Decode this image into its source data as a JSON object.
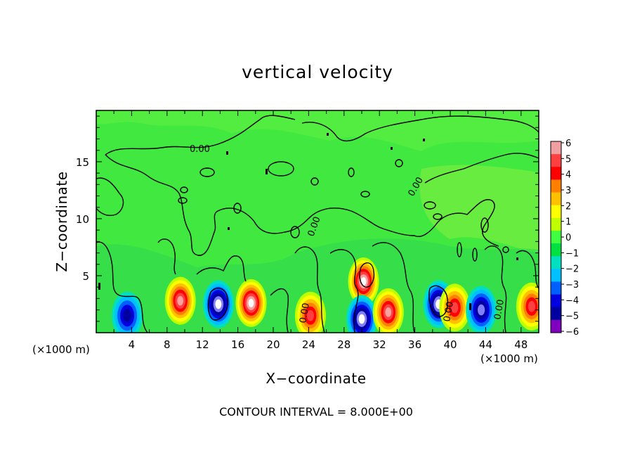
{
  "chart_data": {
    "type": "heatmap",
    "title": "vertical velocity",
    "xlabel": "X−coordinate",
    "ylabel": "Z−coordinate",
    "x_unit_left": "(×1000 m)",
    "x_unit_right": "(×1000 m)",
    "footer": "CONTOUR INTERVAL = 8.000E+00",
    "xlim": [
      0,
      50
    ],
    "ylim": [
      0,
      19.5
    ],
    "x_ticks": [
      4,
      8,
      12,
      16,
      20,
      24,
      28,
      32,
      36,
      40,
      44,
      48
    ],
    "y_ticks": [
      5,
      10,
      15
    ],
    "colorbar": {
      "ticks": [
        "6",
        "5",
        "4",
        "3",
        "2",
        "1",
        "0",
        "−1",
        "−2",
        "−3",
        "−4",
        "−5",
        "−6"
      ],
      "colors": [
        "#f0a0a0",
        "#ff4040",
        "#ff0000",
        "#ff8000",
        "#ffc000",
        "#ffff00",
        "#c0ff00",
        "#40ff40",
        "#00e040",
        "#00e0c0",
        "#00c0ff",
        "#0060ff",
        "#0000e0",
        "#0000a0",
        "#8000c0"
      ]
    },
    "contour_labels": [
      "0.00",
      "0.00",
      "0.00",
      "0.00",
      "0.00",
      "0.00"
    ],
    "features": [
      {
        "x": 9.5,
        "z": 2.8,
        "value": 5,
        "note": "updraft"
      },
      {
        "x": 13.8,
        "z": 2.5,
        "value": -6,
        "note": "downdraft"
      },
      {
        "x": 17.5,
        "z": 2.6,
        "value": 6,
        "note": "updraft"
      },
      {
        "x": 30.2,
        "z": 4.5,
        "value": 6,
        "note": "updraft"
      },
      {
        "x": 30.0,
        "z": 1.2,
        "value": -5,
        "note": "downdraft"
      },
      {
        "x": 33.0,
        "z": 1.8,
        "value": 5,
        "note": "updraft"
      },
      {
        "x": 38.7,
        "z": 2.5,
        "value": -6,
        "note": "downdraft"
      },
      {
        "x": 40.5,
        "z": 2.2,
        "value": 4,
        "note": "updraft"
      },
      {
        "x": 43.5,
        "z": 2.0,
        "value": -4,
        "note": "downdraft"
      },
      {
        "x": 49.2,
        "z": 2.3,
        "value": 4,
        "note": "updraft"
      },
      {
        "x": 3.5,
        "z": 1.5,
        "value": -3,
        "note": "downdraft"
      },
      {
        "x": 24.2,
        "z": 1.5,
        "value": 4,
        "note": "updraft"
      }
    ]
  }
}
